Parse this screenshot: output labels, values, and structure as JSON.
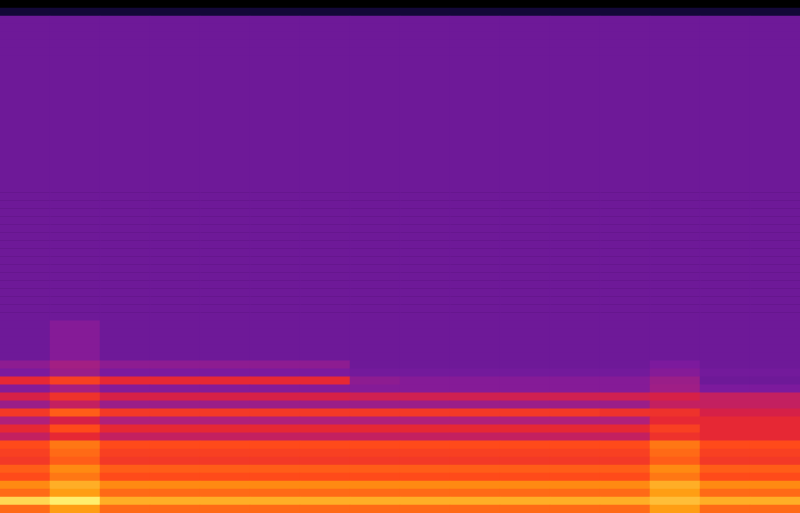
{
  "chart_data": {
    "type": "heatmap",
    "x": [
      0,
      1,
      2,
      3,
      4,
      5,
      6,
      7,
      8,
      9,
      10,
      11,
      12,
      13,
      14,
      15
    ],
    "y": [
      63,
      62,
      61,
      60,
      59,
      58,
      57,
      56,
      55,
      54,
      53,
      52,
      51,
      50,
      49,
      48,
      47,
      46,
      45,
      44,
      43,
      42,
      41,
      40,
      39,
      38,
      37,
      36,
      35,
      34,
      33,
      32,
      31,
      30,
      29,
      28,
      27,
      26,
      25,
      24,
      23,
      22,
      21,
      20,
      19,
      18,
      17,
      16,
      15,
      14,
      13,
      12,
      11,
      10,
      9,
      8,
      7,
      6,
      5,
      4,
      3,
      2,
      1,
      0
    ],
    "zlim": [
      0,
      100
    ],
    "tick_labels": false,
    "cells": [
      [
        0,
        0,
        0,
        0,
        0,
        0,
        0,
        0,
        0,
        0,
        0,
        0,
        0,
        0,
        0,
        0
      ],
      [
        12,
        12,
        12,
        12,
        12,
        12,
        12,
        12,
        12,
        12,
        12,
        12,
        12,
        12,
        12,
        12
      ],
      [
        35,
        35,
        35,
        35,
        35,
        35,
        35,
        35,
        35,
        35,
        35,
        35,
        35,
        35,
        35,
        35
      ],
      [
        35,
        35,
        35,
        35,
        35,
        35,
        35,
        35,
        35,
        35,
        35,
        35,
        35,
        35,
        35,
        35
      ],
      [
        35,
        35,
        35,
        35,
        35,
        35,
        35,
        35,
        35,
        35,
        35,
        35,
        35,
        35,
        35,
        35
      ],
      [
        35,
        35,
        35,
        35,
        35,
        35,
        35,
        35,
        35,
        35,
        35,
        35,
        35,
        35,
        35,
        35
      ],
      [
        35,
        35,
        35,
        35,
        35,
        35,
        35,
        35,
        35,
        35,
        35,
        35,
        35,
        35,
        35,
        35
      ],
      [
        35,
        35,
        35,
        35,
        35,
        35,
        35,
        35,
        35,
        35,
        35,
        35,
        35,
        35,
        35,
        35
      ],
      [
        35,
        35,
        35,
        35,
        35,
        35,
        35,
        35,
        35,
        35,
        35,
        35,
        35,
        35,
        35,
        35
      ],
      [
        35,
        35,
        35,
        35,
        35,
        35,
        35,
        35,
        35,
        35,
        35,
        35,
        35,
        35,
        35,
        35
      ],
      [
        35,
        35,
        35,
        35,
        35,
        35,
        35,
        35,
        35,
        35,
        35,
        35,
        35,
        35,
        35,
        35
      ],
      [
        35,
        35,
        35,
        35,
        35,
        35,
        35,
        35,
        35,
        35,
        35,
        35,
        35,
        35,
        35,
        35
      ],
      [
        35,
        35,
        35,
        35,
        35,
        35,
        35,
        35,
        35,
        35,
        35,
        35,
        35,
        35,
        35,
        35
      ],
      [
        35,
        35,
        35,
        35,
        35,
        35,
        35,
        35,
        35,
        35,
        35,
        35,
        35,
        35,
        35,
        35
      ],
      [
        35,
        35,
        35,
        35,
        35,
        35,
        35,
        35,
        35,
        35,
        35,
        35,
        35,
        35,
        35,
        35
      ],
      [
        35,
        35,
        35,
        35,
        35,
        35,
        35,
        35,
        35,
        35,
        35,
        35,
        35,
        35,
        35,
        35
      ],
      [
        35,
        35,
        35,
        35,
        35,
        35,
        35,
        35,
        35,
        35,
        35,
        35,
        35,
        35,
        35,
        35
      ],
      [
        35,
        35,
        35,
        35,
        35,
        35,
        35,
        35,
        35,
        35,
        35,
        35,
        35,
        35,
        35,
        35
      ],
      [
        35,
        35,
        35,
        35,
        35,
        35,
        35,
        35,
        35,
        35,
        35,
        35,
        35,
        35,
        35,
        35
      ],
      [
        35,
        35,
        35,
        35,
        35,
        35,
        35,
        35,
        35,
        35,
        35,
        35,
        35,
        35,
        35,
        35
      ],
      [
        35,
        35,
        35,
        35,
        35,
        35,
        35,
        35,
        35,
        35,
        35,
        35,
        35,
        35,
        35,
        35
      ],
      [
        35,
        35,
        35,
        35,
        35,
        35,
        35,
        35,
        35,
        35,
        35,
        35,
        35,
        35,
        35,
        35
      ],
      [
        35,
        35,
        35,
        35,
        35,
        35,
        35,
        35,
        35,
        35,
        35,
        35,
        35,
        35,
        35,
        35
      ],
      [
        35,
        35,
        35,
        35,
        35,
        35,
        35,
        35,
        35,
        35,
        35,
        35,
        35,
        35,
        35,
        35
      ],
      [
        35,
        35,
        35,
        35,
        35,
        35,
        35,
        35,
        35,
        35,
        35,
        35,
        35,
        35,
        35,
        35
      ],
      [
        35,
        35,
        35,
        35,
        35,
        35,
        35,
        35,
        35,
        35,
        35,
        35,
        35,
        35,
        35,
        35
      ],
      [
        35,
        35,
        35,
        35,
        35,
        35,
        35,
        35,
        35,
        35,
        35,
        35,
        35,
        35,
        35,
        35
      ],
      [
        35,
        35,
        35,
        35,
        35,
        35,
        35,
        35,
        35,
        35,
        35,
        35,
        35,
        35,
        35,
        35
      ],
      [
        35,
        35,
        35,
        35,
        35,
        35,
        35,
        35,
        35,
        35,
        35,
        35,
        35,
        35,
        35,
        35
      ],
      [
        35,
        35,
        35,
        35,
        35,
        35,
        35,
        35,
        35,
        35,
        35,
        35,
        35,
        35,
        35,
        35
      ],
      [
        35,
        35,
        35,
        35,
        35,
        35,
        35,
        35,
        35,
        35,
        35,
        35,
        35,
        35,
        35,
        35
      ],
      [
        35,
        35,
        35,
        35,
        35,
        35,
        35,
        35,
        35,
        35,
        35,
        35,
        35,
        35,
        35,
        35
      ],
      [
        35,
        35,
        35,
        35,
        35,
        35,
        35,
        35,
        35,
        35,
        35,
        35,
        35,
        35,
        35,
        35
      ],
      [
        35,
        35,
        35,
        35,
        35,
        35,
        35,
        35,
        35,
        35,
        35,
        35,
        35,
        35,
        35,
        35
      ],
      [
        35,
        35,
        35,
        35,
        35,
        35,
        35,
        35,
        35,
        35,
        35,
        35,
        35,
        35,
        35,
        35
      ],
      [
        35,
        35,
        35,
        35,
        35,
        35,
        35,
        35,
        35,
        35,
        35,
        35,
        35,
        35,
        35,
        35
      ],
      [
        35,
        35,
        35,
        35,
        35,
        35,
        35,
        35,
        35,
        35,
        35,
        35,
        35,
        35,
        35,
        35
      ],
      [
        35,
        35,
        35,
        35,
        35,
        35,
        35,
        35,
        35,
        35,
        35,
        35,
        35,
        35,
        35,
        35
      ],
      [
        35,
        35,
        35,
        35,
        35,
        35,
        35,
        35,
        35,
        35,
        35,
        35,
        35,
        35,
        35,
        35
      ],
      [
        35,
        35,
        35,
        35,
        35,
        35,
        35,
        35,
        35,
        35,
        35,
        35,
        35,
        35,
        35,
        35
      ],
      [
        35,
        40,
        35,
        35,
        35,
        35,
        35,
        35,
        35,
        35,
        35,
        35,
        35,
        35,
        35,
        35
      ],
      [
        35,
        40,
        35,
        35,
        35,
        35,
        35,
        35,
        35,
        35,
        35,
        35,
        35,
        35,
        35,
        35
      ],
      [
        35,
        40,
        35,
        35,
        35,
        35,
        35,
        35,
        35,
        35,
        35,
        35,
        35,
        35,
        35,
        35
      ],
      [
        35,
        40,
        35,
        35,
        35,
        35,
        35,
        35,
        35,
        35,
        35,
        35,
        35,
        35,
        35,
        35
      ],
      [
        35,
        40,
        35,
        35,
        35,
        35,
        35,
        35,
        35,
        35,
        35,
        35,
        35,
        35,
        35,
        35
      ],
      [
        42,
        47,
        42,
        42,
        42,
        42,
        42,
        35,
        35,
        35,
        35,
        35,
        35,
        38,
        35,
        35
      ],
      [
        38,
        45,
        38,
        38,
        38,
        38,
        38,
        36,
        36,
        36,
        36,
        36,
        36,
        40,
        36,
        36
      ],
      [
        65,
        72,
        65,
        65,
        65,
        65,
        65,
        42,
        40,
        40,
        40,
        40,
        40,
        45,
        35,
        35
      ],
      [
        40,
        48,
        40,
        40,
        40,
        40,
        40,
        40,
        40,
        40,
        40,
        40,
        40,
        46,
        38,
        38
      ],
      [
        60,
        68,
        60,
        60,
        60,
        60,
        60,
        58,
        58,
        58,
        58,
        58,
        58,
        60,
        55,
        55
      ],
      [
        45,
        55,
        45,
        45,
        45,
        45,
        45,
        45,
        45,
        45,
        45,
        45,
        45,
        55,
        55,
        55
      ],
      [
        70,
        78,
        70,
        70,
        70,
        70,
        70,
        70,
        70,
        70,
        70,
        70,
        68,
        68,
        60,
        60
      ],
      [
        50,
        60,
        50,
        50,
        50,
        50,
        50,
        50,
        50,
        50,
        50,
        50,
        50,
        65,
        65,
        65
      ],
      [
        65,
        75,
        65,
        65,
        65,
        65,
        65,
        65,
        65,
        65,
        65,
        65,
        65,
        72,
        65,
        65
      ],
      [
        55,
        65,
        55,
        55,
        55,
        55,
        55,
        55,
        55,
        55,
        55,
        55,
        55,
        68,
        65,
        65
      ],
      [
        75,
        82,
        75,
        75,
        75,
        75,
        75,
        75,
        75,
        75,
        75,
        75,
        75,
        82,
        75,
        75
      ],
      [
        72,
        80,
        72,
        72,
        72,
        72,
        72,
        72,
        72,
        72,
        72,
        72,
        72,
        80,
        72,
        72
      ],
      [
        70,
        78,
        70,
        70,
        70,
        70,
        70,
        70,
        70,
        70,
        70,
        70,
        70,
        78,
        70,
        70
      ],
      [
        78,
        85,
        78,
        78,
        78,
        78,
        78,
        78,
        78,
        78,
        78,
        78,
        78,
        85,
        78,
        78
      ],
      [
        75,
        82,
        75,
        75,
        75,
        75,
        75,
        75,
        75,
        75,
        75,
        75,
        75,
        82,
        75,
        75
      ],
      [
        85,
        90,
        85,
        85,
        85,
        85,
        85,
        85,
        85,
        85,
        85,
        85,
        85,
        90,
        85,
        85
      ],
      [
        80,
        88,
        80,
        80,
        80,
        80,
        80,
        80,
        80,
        80,
        80,
        80,
        80,
        88,
        80,
        80
      ],
      [
        95,
        98,
        90,
        90,
        90,
        90,
        90,
        90,
        90,
        90,
        90,
        90,
        90,
        92,
        90,
        90
      ],
      [
        80,
        88,
        80,
        80,
        80,
        80,
        80,
        80,
        80,
        80,
        80,
        80,
        80,
        88,
        80,
        80
      ]
    ]
  }
}
